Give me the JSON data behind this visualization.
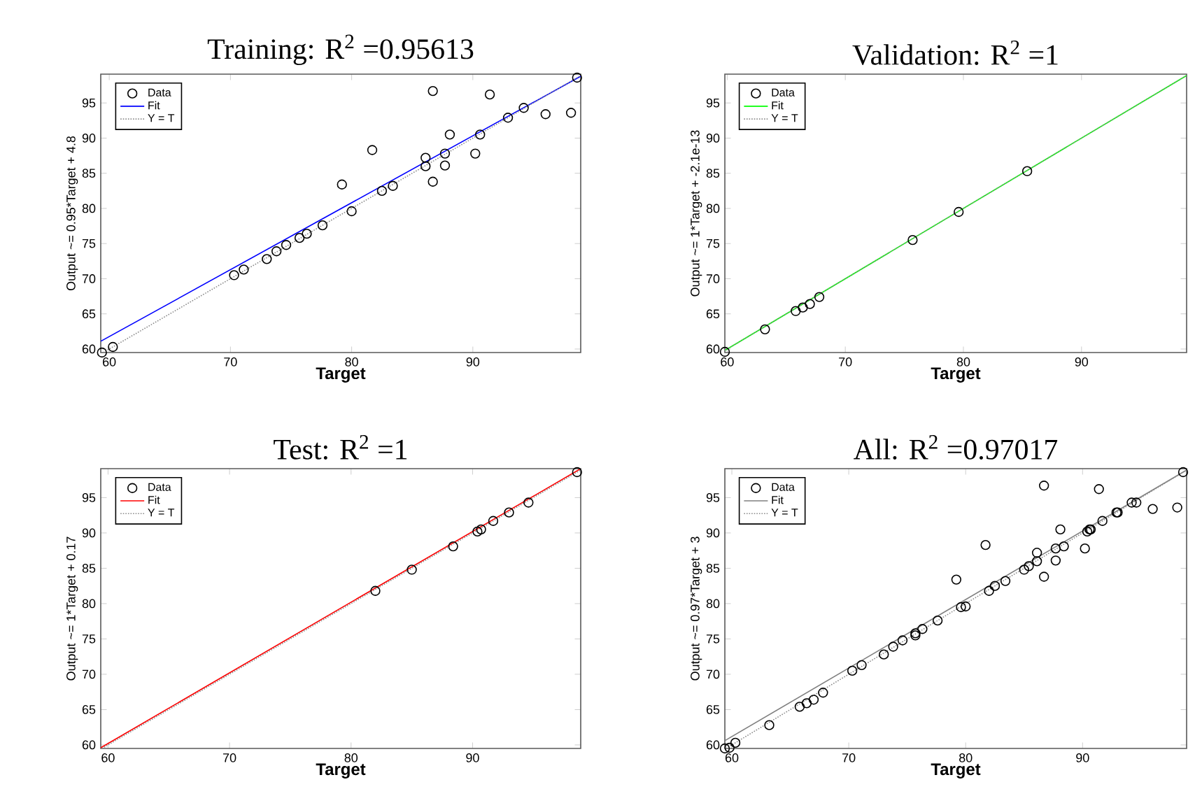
{
  "chart_data": [
    {
      "type": "scatter",
      "title": "Training: R$^{2}$ =0.95613",
      "xlabel": "Target",
      "ylabel": "Output ~= 0.95*Target + 4.8",
      "xlim": [
        59.3,
        98.9
      ],
      "ylim": [
        59.5,
        99.1
      ],
      "xticks": [
        60,
        70,
        80,
        90
      ],
      "yticks": [
        60,
        65,
        70,
        75,
        80,
        85,
        90,
        95
      ],
      "legend": "top left",
      "series": [
        {
          "name": "Data",
          "marker": "circle",
          "color": "#000000",
          "x": [
            98.6,
            86.7,
            91.4,
            94.2,
            92.9,
            96.0,
            98.1,
            88.1,
            90.6,
            90.2,
            81.7,
            86.1,
            87.7,
            86.1,
            87.7,
            86.7,
            79.2,
            83.4,
            82.5,
            80.0,
            77.6,
            76.3,
            75.7,
            74.6,
            73.8,
            73.0,
            71.1,
            70.3,
            60.3,
            59.4
          ],
          "values": [
            98.6,
            96.7,
            96.2,
            94.3,
            92.9,
            93.4,
            93.6,
            90.5,
            90.5,
            87.8,
            88.3,
            87.2,
            87.8,
            86.0,
            86.1,
            83.8,
            83.4,
            83.2,
            82.5,
            79.6,
            77.6,
            76.4,
            75.8,
            74.8,
            73.9,
            72.8,
            71.3,
            70.5,
            60.3,
            59.5
          ]
        },
        {
          "name": "Fit",
          "type": "line",
          "marker": "none",
          "line_style": "solid",
          "color": "#0000ff",
          "x": [
            59.3,
            98.9
          ],
          "values": [
            61.1,
            98.8
          ]
        },
        {
          "name": "Y = T",
          "type": "line",
          "marker": "none",
          "line_style": "dotted",
          "color": "#8c8c8c",
          "x": [
            59.5,
            98.9
          ],
          "values": [
            59.5,
            98.9
          ]
        }
      ]
    },
    {
      "type": "scatter",
      "title": "Validation: R$^{2}$ =1",
      "xlabel": "Target",
      "ylabel": "Output ~= 1*Target + -2.1e-13",
      "xlim": [
        59.8,
        98.9
      ],
      "ylim": [
        59.5,
        99.1
      ],
      "xticks": [
        60,
        70,
        80,
        90
      ],
      "yticks": [
        60,
        65,
        70,
        75,
        80,
        85,
        90,
        95
      ],
      "legend": "top left",
      "series": [
        {
          "name": "Data",
          "marker": "circle",
          "color": "#000000",
          "x": [
            59.8,
            63.2,
            65.8,
            66.4,
            67.0,
            67.8,
            75.7,
            79.6,
            85.4
          ],
          "values": [
            59.6,
            62.8,
            65.4,
            65.9,
            66.4,
            67.4,
            75.5,
            79.5,
            85.3
          ]
        },
        {
          "name": "Fit",
          "type": "line",
          "marker": "none",
          "line_style": "solid",
          "color": "#00ff00",
          "x": [
            59.8,
            98.9
          ],
          "values": [
            59.8,
            98.9
          ]
        },
        {
          "name": "Y = T",
          "type": "line",
          "marker": "none",
          "line_style": "dotted",
          "color": "#8c8c8c",
          "x": [
            59.8,
            98.9
          ],
          "values": [
            59.8,
            98.9
          ]
        }
      ]
    },
    {
      "type": "scatter",
      "title": "Test: R$^{2}$ =1",
      "xlabel": "Target",
      "ylabel": "Output ~= 1*Target + 0.17",
      "xlim": [
        59.4,
        98.9
      ],
      "ylim": [
        59.5,
        99.1
      ],
      "xticks": [
        60,
        70,
        80,
        90
      ],
      "yticks": [
        60,
        65,
        70,
        75,
        80,
        85,
        90,
        95
      ],
      "legend": "top left",
      "series": [
        {
          "name": "Data",
          "marker": "circle",
          "color": "#000000",
          "x": [
            98.6,
            94.6,
            93.0,
            91.7,
            90.7,
            90.4,
            88.4,
            85.0,
            82.0
          ],
          "values": [
            98.6,
            94.3,
            92.9,
            91.7,
            90.5,
            90.2,
            88.1,
            84.8,
            81.8
          ]
        },
        {
          "name": "Fit",
          "type": "line",
          "marker": "none",
          "line_style": "solid",
          "color": "#ff0000",
          "x": [
            59.4,
            98.9
          ],
          "values": [
            59.6,
            99.1
          ]
        },
        {
          "name": "Y = T",
          "type": "line",
          "marker": "none",
          "line_style": "dotted",
          "color": "#8c8c8c",
          "x": [
            59.5,
            98.9
          ],
          "values": [
            59.5,
            98.9
          ]
        }
      ]
    },
    {
      "type": "scatter",
      "title": "All: R$^{2}$ =0.97017",
      "xlabel": "Target",
      "ylabel": "Output ~= 0.97*Target + 3",
      "xlim": [
        59.4,
        98.9
      ],
      "ylim": [
        59.5,
        99.1
      ],
      "xticks": [
        60,
        70,
        80,
        90
      ],
      "yticks": [
        60,
        65,
        70,
        75,
        80,
        85,
        90,
        95
      ],
      "legend": "top left",
      "series": [
        {
          "name": "Data",
          "marker": "circle",
          "color": "#000000",
          "x": [
            98.6,
            86.7,
            91.4,
            94.2,
            92.9,
            96.0,
            98.1,
            88.1,
            90.6,
            90.2,
            81.7,
            86.1,
            87.7,
            86.1,
            87.7,
            86.7,
            79.2,
            83.4,
            82.5,
            80.0,
            77.6,
            76.3,
            75.7,
            74.6,
            73.8,
            73.0,
            71.1,
            70.3,
            60.3,
            59.4,
            59.8,
            63.2,
            65.8,
            66.4,
            67.0,
            67.8,
            75.7,
            79.6,
            85.4,
            94.6,
            93.0,
            91.7,
            90.7,
            90.4,
            88.4,
            85.0,
            82.0
          ],
          "values": [
            98.6,
            96.7,
            96.2,
            94.3,
            92.9,
            93.4,
            93.6,
            90.5,
            90.5,
            87.8,
            88.3,
            87.2,
            87.8,
            86.0,
            86.1,
            83.8,
            83.4,
            83.2,
            82.5,
            79.6,
            77.6,
            76.4,
            75.8,
            74.8,
            73.9,
            72.8,
            71.3,
            70.5,
            60.3,
            59.5,
            59.6,
            62.8,
            65.4,
            65.9,
            66.4,
            67.4,
            75.5,
            79.5,
            85.3,
            94.3,
            92.9,
            91.7,
            90.5,
            90.2,
            88.1,
            84.8,
            81.8
          ]
        },
        {
          "name": "Fit",
          "type": "line",
          "marker": "none",
          "line_style": "solid",
          "color": "#7f7f7f",
          "x": [
            59.4,
            98.9
          ],
          "values": [
            60.6,
            98.9
          ]
        },
        {
          "name": "Y = T",
          "type": "line",
          "marker": "none",
          "line_style": "dotted",
          "color": "#8c8c8c",
          "x": [
            59.5,
            98.9
          ],
          "values": [
            59.5,
            98.9
          ]
        }
      ]
    }
  ]
}
